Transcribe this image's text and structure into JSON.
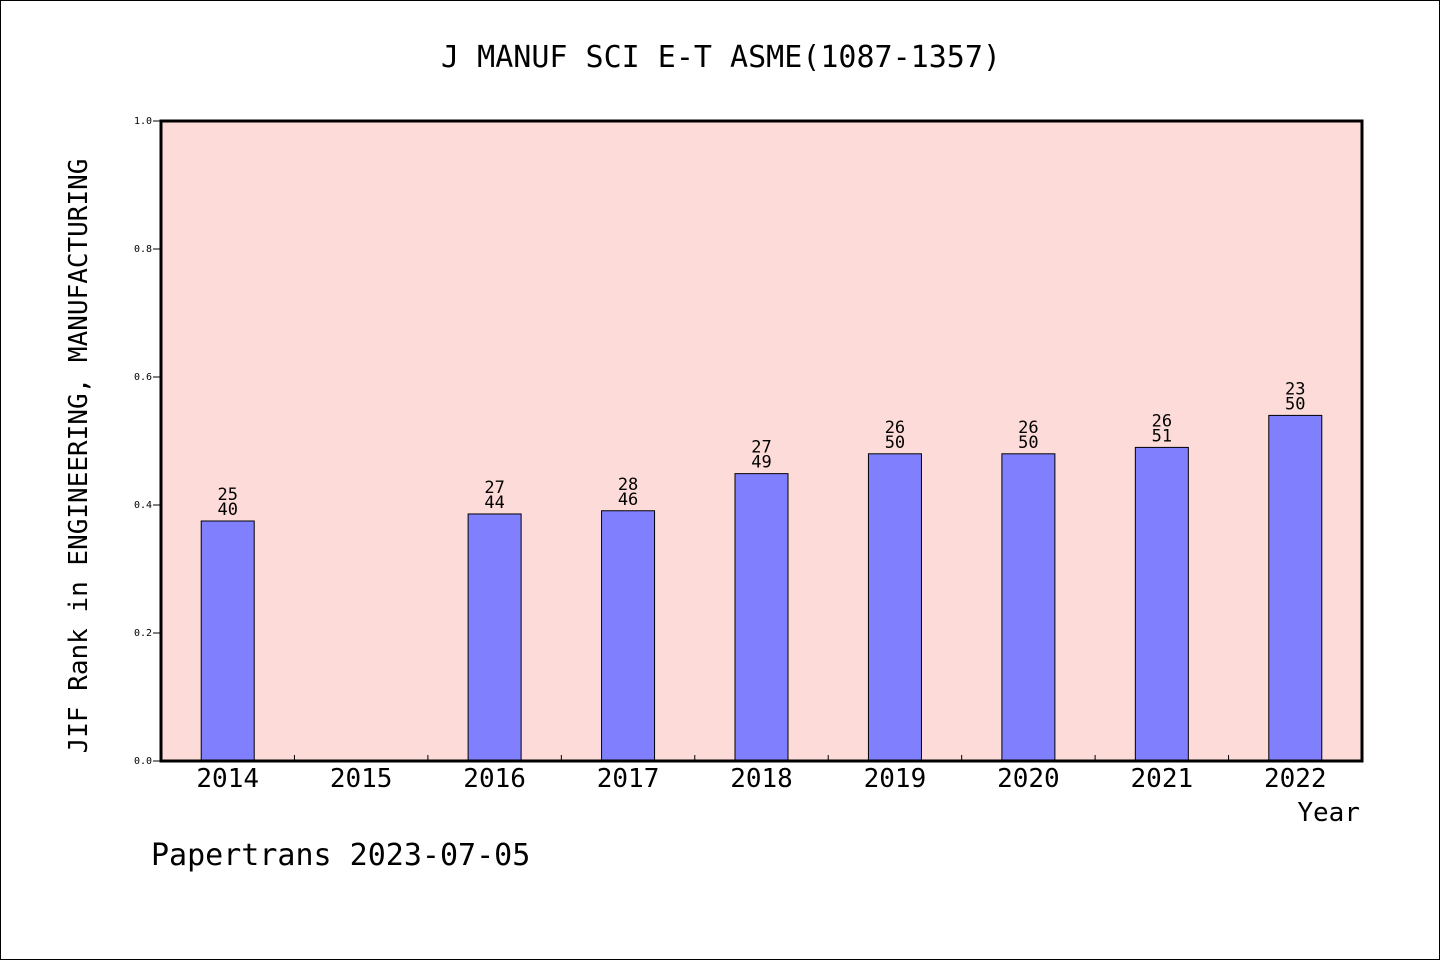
{
  "chart_data": {
    "type": "bar",
    "title": "J MANUF SCI E-T ASME(1087-1357)",
    "xlabel": "Year",
    "ylabel": "JIF Rank in ENGINEERING, MANUFACTURING",
    "categories": [
      "2014",
      "2015",
      "2016",
      "2017",
      "2018",
      "2019",
      "2020",
      "2021",
      "2022"
    ],
    "values": [
      0.375,
      null,
      0.386,
      0.391,
      0.449,
      0.48,
      0.48,
      0.49,
      0.54
    ],
    "rank_labels": [
      {
        "rank": "25",
        "total": "40"
      },
      null,
      {
        "rank": "27",
        "total": "44"
      },
      {
        "rank": "28",
        "total": "46"
      },
      {
        "rank": "27",
        "total": "49"
      },
      {
        "rank": "26",
        "total": "50"
      },
      {
        "rank": "26",
        "total": "50"
      },
      {
        "rank": "26",
        "total": "51"
      },
      {
        "rank": "23",
        "total": "50"
      }
    ],
    "ylim": [
      0.0,
      1.0
    ],
    "yticks": [
      "0.0",
      "0.2",
      "0.4",
      "0.6",
      "0.8",
      "1.0"
    ],
    "grid": false,
    "colors": {
      "plot_background": "#fddbd8",
      "bar_fill": "#8080ff",
      "bar_stroke": "#000000"
    }
  },
  "footer": {
    "credit": "Papertrans 2023-07-05"
  }
}
